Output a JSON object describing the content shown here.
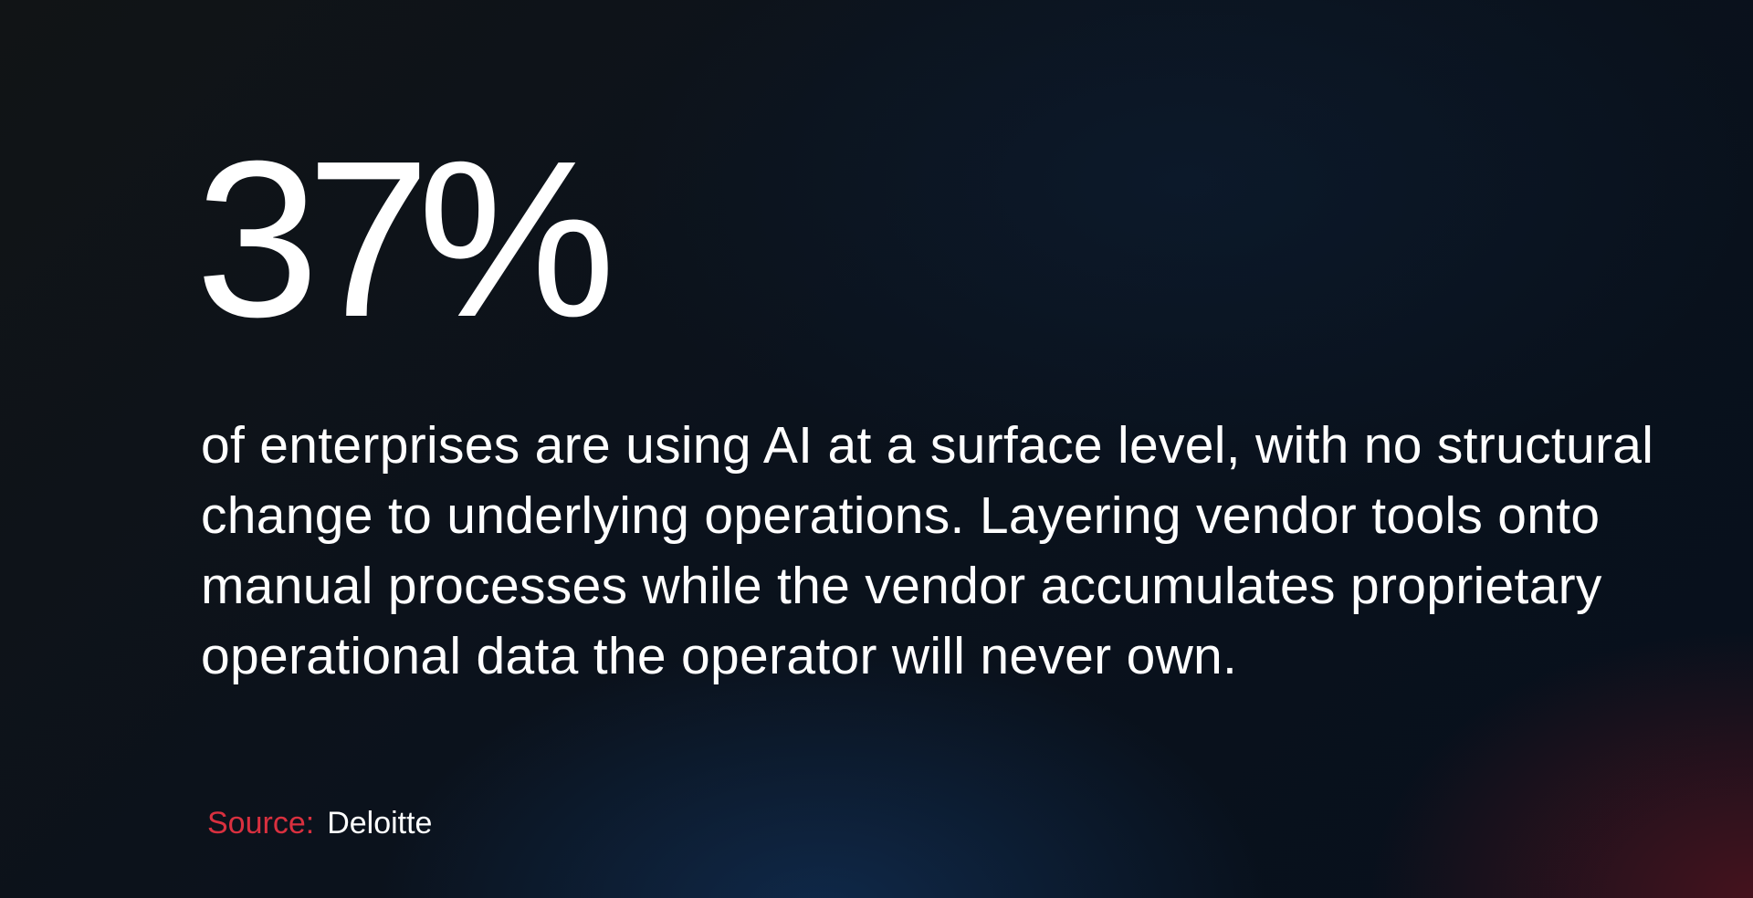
{
  "stat": {
    "value": "37%"
  },
  "description": "of enterprises are using AI at a surface level, with no structural change to underlying operations. Layering vendor tools onto manual processes while the vendor accumulates proprietary operational data the operator will never own.",
  "source": {
    "label": "Source:",
    "name": "Deloitte"
  },
  "colors": {
    "accent": "#d9303f",
    "background": "#0b121c",
    "text": "#ffffff"
  }
}
